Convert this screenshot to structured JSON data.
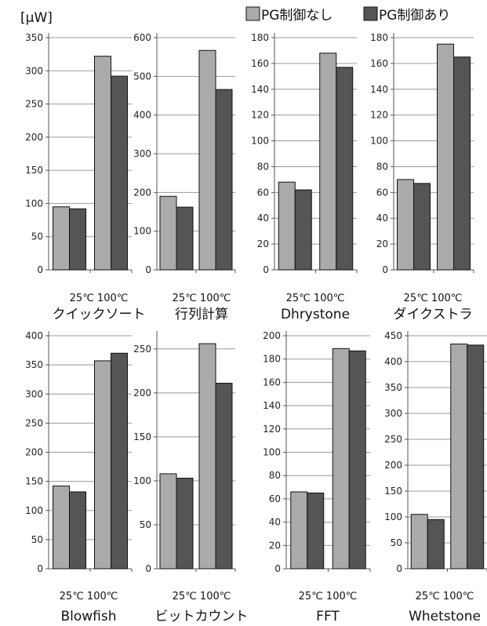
{
  "unit_label": "[μW]",
  "legend": [
    {
      "label": "PG制御なし",
      "color": "#aaaaaa"
    },
    {
      "label": "PG制御あり",
      "color": "#555555"
    }
  ],
  "chart_data": [
    {
      "type": "bar",
      "title": "クイックソート",
      "categories": [
        "25℃",
        "100℃"
      ],
      "series": [
        {
          "name": "PG制御なし",
          "values": [
            95,
            322
          ]
        },
        {
          "name": "PG制御あり",
          "values": [
            92,
            292
          ]
        }
      ],
      "ylim": [
        0,
        350
      ],
      "yticks": [
        0,
        50,
        100,
        150,
        200,
        250,
        300,
        350
      ]
    },
    {
      "type": "bar",
      "title": "行列計算",
      "categories": [
        "25℃",
        "100℃"
      ],
      "series": [
        {
          "name": "PG制御なし",
          "values": [
            190,
            567
          ]
        },
        {
          "name": "PG制御あり",
          "values": [
            162,
            466
          ]
        }
      ],
      "ylim": [
        0,
        600
      ],
      "yticks": [
        0,
        100,
        200,
        300,
        400,
        500,
        600
      ]
    },
    {
      "type": "bar",
      "title": "Dhrystone",
      "categories": [
        "25℃",
        "100℃"
      ],
      "series": [
        {
          "name": "PG制御なし",
          "values": [
            68,
            168
          ]
        },
        {
          "name": "PG制御あり",
          "values": [
            62,
            157
          ]
        }
      ],
      "ylim": [
        0,
        180
      ],
      "yticks": [
        0,
        20,
        40,
        60,
        80,
        100,
        120,
        140,
        160,
        180
      ]
    },
    {
      "type": "bar",
      "title": "ダイクストラ",
      "categories": [
        "25℃",
        "100℃"
      ],
      "series": [
        {
          "name": "PG制御なし",
          "values": [
            70,
            175
          ]
        },
        {
          "name": "PG制御あり",
          "values": [
            67,
            165
          ]
        }
      ],
      "ylim": [
        0,
        180
      ],
      "yticks": [
        0,
        20,
        40,
        60,
        80,
        100,
        120,
        140,
        160,
        180
      ]
    },
    {
      "type": "bar",
      "title": "Blowfish",
      "categories": [
        "25℃",
        "100℃"
      ],
      "series": [
        {
          "name": "PG制御なし",
          "values": [
            142,
            357
          ]
        },
        {
          "name": "PG制御あり",
          "values": [
            132,
            370
          ]
        }
      ],
      "ylim": [
        0,
        400
      ],
      "yticks": [
        0,
        50,
        100,
        150,
        200,
        250,
        300,
        350,
        400
      ]
    },
    {
      "type": "bar",
      "title": "ビットカウント",
      "categories": [
        "25℃",
        "100℃"
      ],
      "series": [
        {
          "name": "PG制御なし",
          "values": [
            108,
            256
          ]
        },
        {
          "name": "PG制御あり",
          "values": [
            103,
            211
          ]
        }
      ],
      "ylim": [
        0,
        265
      ],
      "yticks": [
        0,
        50,
        100,
        150,
        200,
        250
      ]
    },
    {
      "type": "bar",
      "title": "FFT",
      "categories": [
        "25℃",
        "100℃"
      ],
      "series": [
        {
          "name": "PG制御なし",
          "values": [
            66,
            189
          ]
        },
        {
          "name": "PG制御あり",
          "values": [
            65,
            187
          ]
        }
      ],
      "ylim": [
        0,
        200
      ],
      "yticks": [
        0,
        20,
        40,
        60,
        80,
        100,
        120,
        140,
        160,
        180,
        200
      ]
    },
    {
      "type": "bar",
      "title": "Whetstone",
      "categories": [
        "25℃",
        "100℃"
      ],
      "series": [
        {
          "name": "PG制御なし",
          "values": [
            105,
            434
          ]
        },
        {
          "name": "PG制御あり",
          "values": [
            95,
            432
          ]
        }
      ],
      "ylim": [
        0,
        450
      ],
      "yticks": [
        0,
        50,
        100,
        150,
        200,
        250,
        300,
        350,
        400,
        450
      ]
    }
  ]
}
